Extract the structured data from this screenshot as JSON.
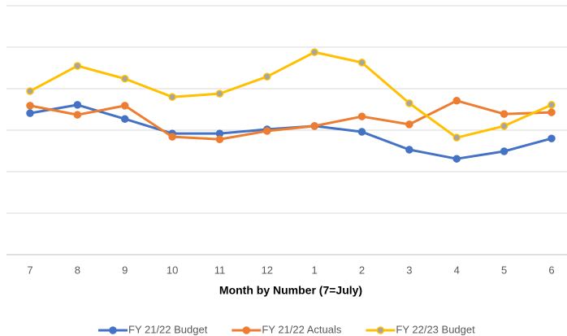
{
  "chart_data": {
    "type": "line",
    "x_label": "Month by Number (7=July)",
    "categories": [
      "7",
      "8",
      "9",
      "10",
      "11",
      "12",
      "1",
      "2",
      "3",
      "4",
      "5",
      "6"
    ],
    "series": [
      {
        "name": "FY 21/22 Budget",
        "color": "#4472c4",
        "marker_color": "#4472c4",
        "values": [
          3.41,
          3.61,
          3.27,
          2.92,
          2.92,
          3.02,
          3.1,
          2.96,
          2.53,
          2.31,
          2.49,
          2.8
        ]
      },
      {
        "name": "FY 21/22 Actuals",
        "color": "#ed7d31",
        "marker_color": "#ed7d31",
        "values": [
          3.59,
          3.37,
          3.59,
          2.84,
          2.78,
          2.98,
          3.1,
          3.33,
          3.14,
          3.71,
          3.39,
          3.43
        ]
      },
      {
        "name": "FY 22/23 Budget",
        "color": "#ffc000",
        "marker_color": "#a5a5a5",
        "values": [
          3.94,
          4.55,
          4.24,
          3.8,
          3.88,
          4.29,
          4.88,
          4.63,
          3.65,
          2.82,
          3.1,
          3.61
        ]
      }
    ],
    "ylim": [
      0,
      6
    ],
    "yticks": [
      0,
      1,
      2,
      3,
      4,
      5,
      6
    ],
    "grid": true,
    "legend": "bottom"
  }
}
